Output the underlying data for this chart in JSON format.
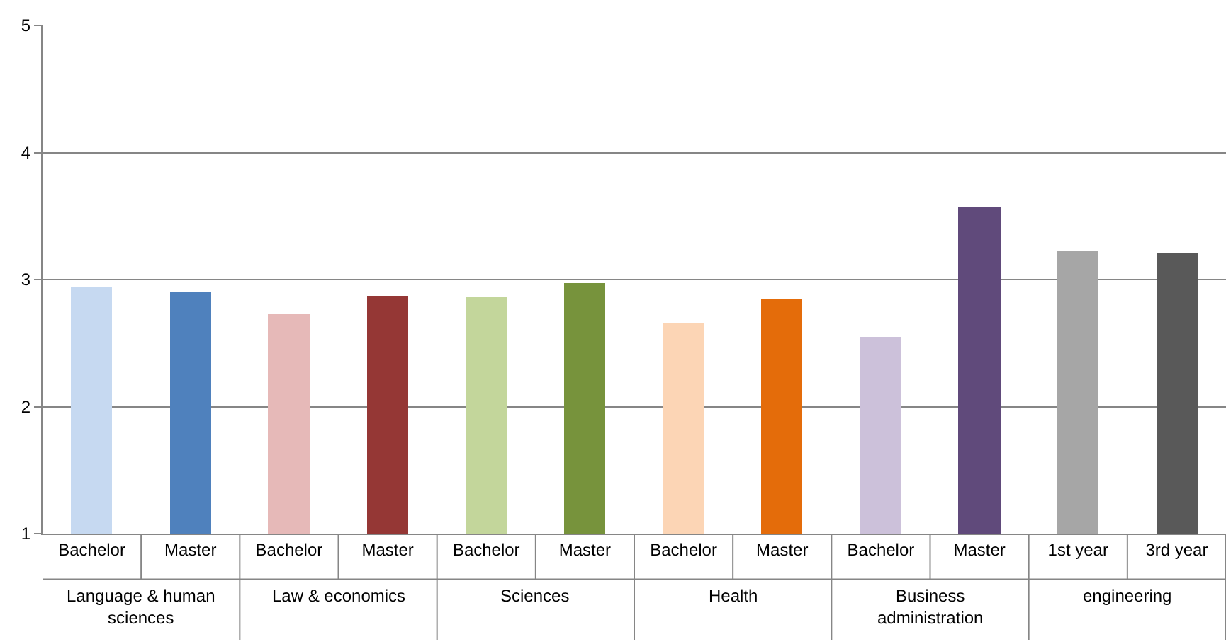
{
  "chart_data": {
    "type": "bar",
    "categories": [
      "Bachelor",
      "Master",
      "Bachelor",
      "Master",
      "Bachelor",
      "Master",
      "Bachelor",
      "Master",
      "Bachelor",
      "Master",
      "1st year",
      "3rd year"
    ],
    "values": [
      2.94,
      2.91,
      2.73,
      2.87,
      2.86,
      2.97,
      2.66,
      2.85,
      2.55,
      3.57,
      3.23,
      3.21
    ],
    "colors": [
      "#c6d9f1",
      "#4f81bd",
      "#e6b9b8",
      "#953735",
      "#c3d69b",
      "#77933c",
      "#fcd5b5",
      "#e46c0a",
      "#ccc1da",
      "#604a7b",
      "#a6a6a6",
      "#595959"
    ],
    "annotations": [
      "Language & human sciences",
      "Law & economics",
      "Sciences",
      "Health",
      "Business administration",
      "engineering"
    ],
    "ylim": [
      1,
      5
    ],
    "yticks": [
      1,
      2,
      3,
      4,
      5
    ],
    "grid": "y"
  }
}
